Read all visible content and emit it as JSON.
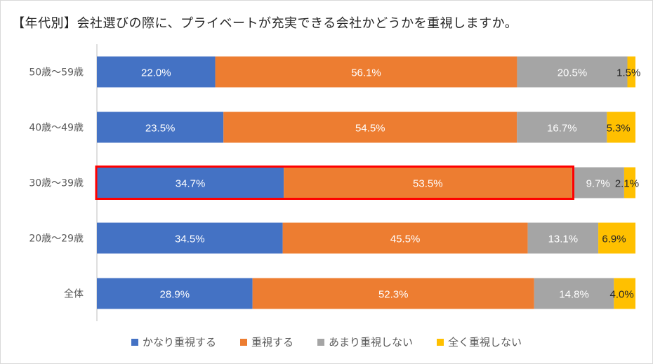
{
  "chart_data": {
    "type": "bar",
    "orientation": "horizontal",
    "stacked": "percent",
    "title": "【年代別】会社選びの際に、プライベートが充実できる会社かどうかを重視しますか。",
    "categories": [
      "50歳～59歳",
      "40歳～49歳",
      "30歳～39歳",
      "20歳～29歳",
      "全体"
    ],
    "series": [
      {
        "name": "かなり重視する",
        "color": "#4472c4",
        "values": [
          22.0,
          23.5,
          34.7,
          34.5,
          28.9
        ]
      },
      {
        "name": "重視する",
        "color": "#ed7d31",
        "values": [
          56.1,
          54.5,
          53.5,
          45.5,
          52.3
        ]
      },
      {
        "name": "あまり重視しない",
        "color": "#a5a5a5",
        "values": [
          20.5,
          16.7,
          9.7,
          13.1,
          14.8
        ]
      },
      {
        "name": "全く重視しない",
        "color": "#ffc000",
        "values": [
          1.5,
          5.3,
          2.1,
          6.9,
          4.0
        ]
      }
    ],
    "label_format": "{v}%",
    "xlim": [
      0,
      100
    ],
    "grid": false,
    "legend": "bottom",
    "highlight": {
      "category": "30歳～39歳",
      "series": [
        "かなり重視する",
        "重視する"
      ],
      "color": "#ff0000"
    }
  }
}
